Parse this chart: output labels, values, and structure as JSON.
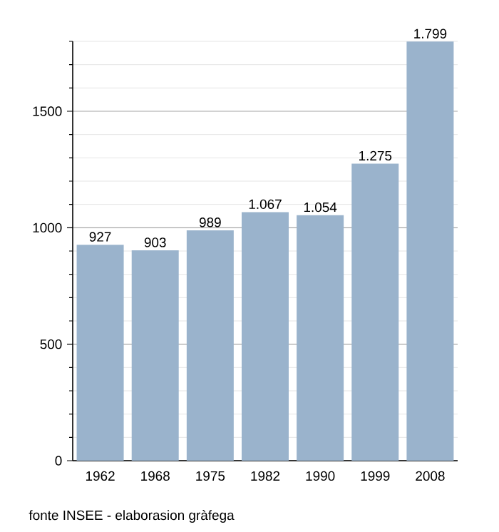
{
  "chart_data": {
    "type": "bar",
    "categories": [
      "1962",
      "1968",
      "1975",
      "1982",
      "1990",
      "1999",
      "2008"
    ],
    "values": [
      927,
      903,
      989,
      1067,
      1054,
      1275,
      1799
    ],
    "value_labels": [
      "927",
      "903",
      "989",
      "1.067",
      "1.054",
      "1.275",
      "1.799"
    ],
    "color": "#9ab3cc",
    "ylim": [
      0,
      1800
    ],
    "yticks": [
      0,
      {
        "value": 100,
        "label": null
      },
      {
        "value": 200,
        "label": null
      },
      {
        "value": 300,
        "label": null
      },
      {
        "value": 400,
        "label": null
      },
      500,
      {
        "value": 600,
        "label": null
      },
      {
        "value": 700,
        "label": null
      },
      {
        "value": 800,
        "label": null
      },
      {
        "value": 900,
        "label": null
      },
      1000,
      {
        "value": 1100,
        "label": null
      },
      {
        "value": 1200,
        "label": null
      },
      {
        "value": 1300,
        "label": null
      },
      {
        "value": 1400,
        "label": null
      },
      1500,
      {
        "value": 1600,
        "label": null
      },
      {
        "value": 1700,
        "label": null
      },
      {
        "value": 1800,
        "label": null
      }
    ],
    "grid": "y",
    "annotations": [
      "fonte INSEE - elaborasion gràfega"
    ]
  }
}
